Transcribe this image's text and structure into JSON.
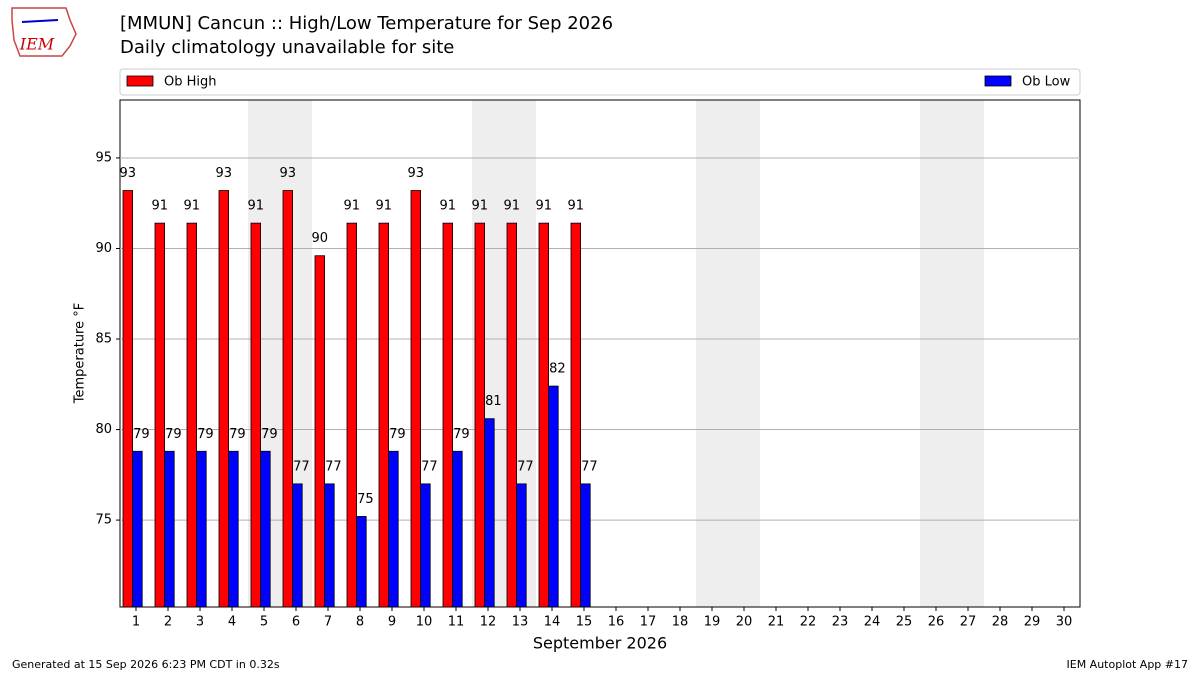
{
  "logo": "IEM",
  "footer": {
    "left": "Generated at 15 Sep 2026 6:23 PM CDT in 0.32s",
    "right": "IEM Autoplot App #17"
  },
  "chart_data": {
    "type": "bar",
    "title": "[MMUN] Cancun :: High/Low Temperature for Sep 2026",
    "subtitle": "Daily climatology unavailable for site",
    "xlabel": "September 2026",
    "ylabel": "Temperature °F",
    "x": [
      1,
      2,
      3,
      4,
      5,
      6,
      7,
      8,
      9,
      10,
      11,
      12,
      13,
      14,
      15,
      16,
      17,
      18,
      19,
      20,
      21,
      22,
      23,
      24,
      25,
      26,
      27,
      28,
      29,
      30
    ],
    "xlim": [
      0.5,
      30.5
    ],
    "xticks": [
      1,
      2,
      3,
      4,
      5,
      6,
      7,
      8,
      9,
      10,
      11,
      12,
      13,
      14,
      15,
      16,
      17,
      18,
      19,
      20,
      21,
      22,
      23,
      24,
      25,
      26,
      27,
      28,
      29,
      30
    ],
    "ylim": [
      70.2,
      98.2
    ],
    "yticks": [
      75,
      80,
      85,
      90,
      95
    ],
    "grid": true,
    "legend": "top",
    "series": [
      {
        "name": "Ob High",
        "color": "#ff0000",
        "values": [
          93.2,
          91.4,
          91.4,
          93.2,
          91.4,
          93.2,
          89.6,
          91.4,
          91.4,
          93.2,
          91.4,
          91.4,
          91.4,
          91.4,
          91.4,
          null,
          null,
          null,
          null,
          null,
          null,
          null,
          null,
          null,
          null,
          null,
          null,
          null,
          null,
          null
        ],
        "value_labels": [
          "93",
          "91",
          "91",
          "93",
          "91",
          "93",
          "90",
          "91",
          "91",
          "93",
          "91",
          "91",
          "91",
          "91",
          "91",
          null,
          null,
          null,
          null,
          null,
          null,
          null,
          null,
          null,
          null,
          null,
          null,
          null,
          null,
          null
        ]
      },
      {
        "name": "Ob Low",
        "color": "#0000ff",
        "values": [
          78.8,
          78.8,
          78.8,
          78.8,
          78.8,
          77,
          77,
          75.2,
          78.8,
          77,
          78.8,
          80.6,
          77,
          82.4,
          77,
          null,
          null,
          null,
          null,
          null,
          null,
          null,
          null,
          null,
          null,
          null,
          null,
          null,
          null,
          null
        ],
        "value_labels": [
          "79",
          "79",
          "79",
          "79",
          "79",
          "77",
          "77",
          "75",
          "79",
          "77",
          "79",
          "81",
          "77",
          "82",
          "77",
          null,
          null,
          null,
          null,
          null,
          null,
          null,
          null,
          null,
          null,
          null,
          null,
          null,
          null,
          null
        ]
      }
    ]
  }
}
